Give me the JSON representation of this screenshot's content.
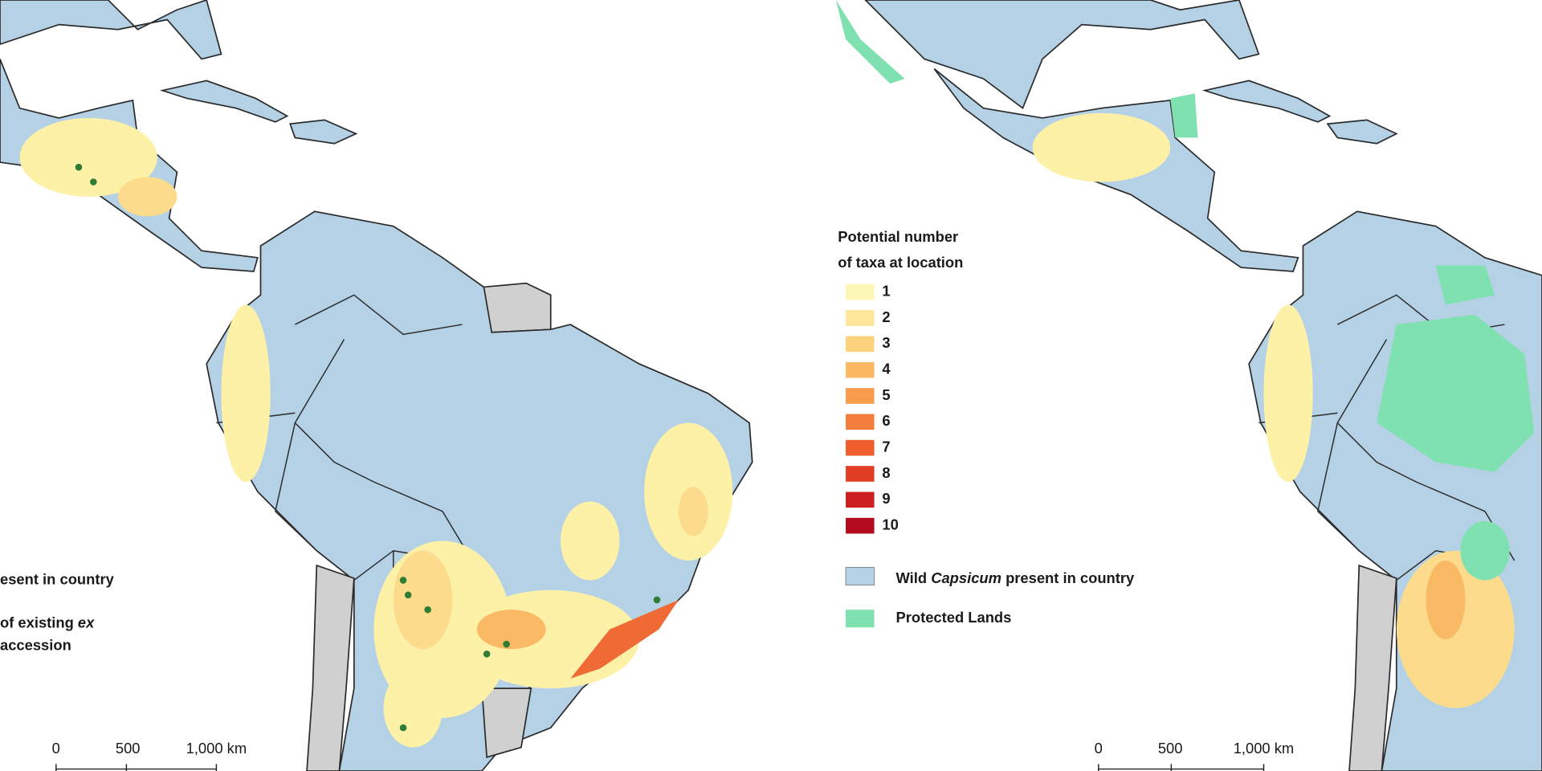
{
  "left_map": {
    "legend_fragments": {
      "country": "esent in country",
      "accession_line1": [
        "of existing",
        "ex"
      ],
      "accession_line2": "accession"
    },
    "scale_bar": {
      "labels": [
        "0",
        "500",
        "1,000 km"
      ]
    }
  },
  "legend": {
    "title": [
      "Potential number",
      "of taxa at location"
    ],
    "classes": [
      {
        "value": 1,
        "color": "#fdf7b6"
      },
      {
        "value": 2,
        "color": "#fde599"
      },
      {
        "value": 3,
        "color": "#fcd27c"
      },
      {
        "value": 4,
        "color": "#fab862"
      },
      {
        "value": 5,
        "color": "#f79d4b"
      },
      {
        "value": 6,
        "color": "#f47e3b"
      },
      {
        "value": 7,
        "color": "#ee5e2d"
      },
      {
        "value": 8,
        "color": "#e13d25"
      },
      {
        "value": 9,
        "color": "#cd1f1f"
      },
      {
        "value": 10,
        "color": "#b50b20"
      }
    ],
    "country_label": [
      "Wild",
      "Capsicum",
      "present in country"
    ],
    "country_color": "#b4d1e6",
    "protected_label": "Protected Lands",
    "protected_color": "#7fe0b0"
  },
  "right_map": {
    "scale_bar": {
      "labels": [
        "0",
        "500",
        "1,000 km"
      ]
    }
  }
}
